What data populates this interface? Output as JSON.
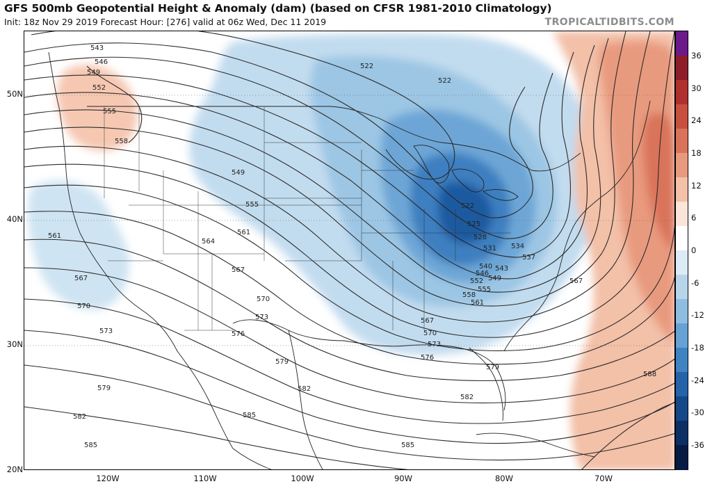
{
  "title": "GFS 500mb Geopotential Height & Anomaly (dam) (based on CFSR 1981-2010 Climatology)",
  "subtitle": "Init: 18z Nov 29 2019   Forecast Hour: [276]   valid at 06z Wed, Dec 11 2019",
  "brand": "TROPICALTIDBITS.COM",
  "lat_labels": [
    "50N",
    "40N",
    "30N",
    "20N"
  ],
  "lon_labels": [
    "120W",
    "110W",
    "100W",
    "90W",
    "80W",
    "70W"
  ],
  "colorbar": {
    "ticks": [
      "36",
      "30",
      "24",
      "18",
      "12",
      "6",
      "0",
      "-6",
      "-12",
      "-18",
      "-24",
      "-30",
      "-36"
    ],
    "colors": [
      "#6a1a8a",
      "#8e1d2a",
      "#b0302e",
      "#c8503f",
      "#d9735a",
      "#e89a7e",
      "#f3c0a8",
      "#fbe4d8",
      "#ffffff",
      "#dcebf5",
      "#b7d5ea",
      "#8fbde0",
      "#66a2d3",
      "#3f83c3",
      "#2463a9",
      "#154889",
      "#0c2f66",
      "#061a44"
    ]
  },
  "contours": [
    {
      "label": "522"
    },
    {
      "label": "522"
    },
    {
      "label": "522"
    },
    {
      "label": "525"
    },
    {
      "label": "528"
    },
    {
      "label": "531"
    },
    {
      "label": "534"
    },
    {
      "label": "537"
    },
    {
      "label": "540"
    },
    {
      "label": "543"
    },
    {
      "label": "543"
    },
    {
      "label": "546"
    },
    {
      "label": "546"
    },
    {
      "label": "549"
    },
    {
      "label": "549"
    },
    {
      "label": "549"
    },
    {
      "label": "552"
    },
    {
      "label": "552"
    },
    {
      "label": "555"
    },
    {
      "label": "555"
    },
    {
      "label": "555"
    },
    {
      "label": "558"
    },
    {
      "label": "558"
    },
    {
      "label": "561"
    },
    {
      "label": "561"
    },
    {
      "label": "561"
    },
    {
      "label": "564"
    },
    {
      "label": "567"
    },
    {
      "label": "567"
    },
    {
      "label": "567"
    },
    {
      "label": "567"
    },
    {
      "label": "570"
    },
    {
      "label": "570"
    },
    {
      "label": "570"
    },
    {
      "label": "573"
    },
    {
      "label": "573"
    },
    {
      "label": "573"
    },
    {
      "label": "576"
    },
    {
      "label": "576"
    },
    {
      "label": "579"
    },
    {
      "label": "579"
    },
    {
      "label": "579"
    },
    {
      "label": "582"
    },
    {
      "label": "582"
    },
    {
      "label": "582"
    },
    {
      "label": "585"
    },
    {
      "label": "585"
    },
    {
      "label": "585"
    },
    {
      "label": "588"
    }
  ]
}
